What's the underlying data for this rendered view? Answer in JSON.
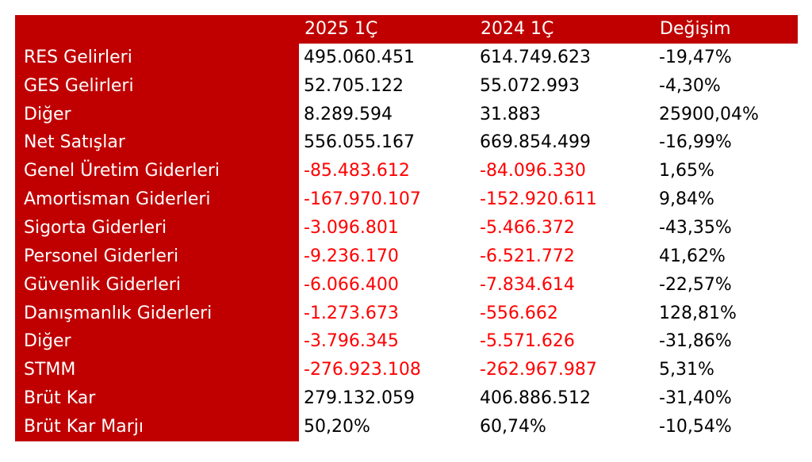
{
  "colors": {
    "header_bg": "#c00000",
    "header_text": "#ffffff",
    "negative_text": "#ff0000",
    "value_text": "#000000"
  },
  "header": {
    "col1": "2025 1Ç",
    "col2": "2024 1Ç",
    "col3": "Değişim"
  },
  "rows": [
    {
      "label": "RES Gelirleri",
      "v2025": "495.060.451",
      "v2024": "614.749.623",
      "change": "-19,47%",
      "red": false
    },
    {
      "label": "GES Gelirleri",
      "v2025": "52.705.122",
      "v2024": "55.072.993",
      "change": "-4,30%",
      "red": false
    },
    {
      "label": "Diğer",
      "v2025": "8.289.594",
      "v2024": "31.883",
      "change": "25900,04%",
      "red": false
    },
    {
      "label": "Net Satışlar",
      "v2025": "556.055.167",
      "v2024": "669.854.499",
      "change": "-16,99%",
      "red": false
    },
    {
      "label": "Genel Üretim Giderleri",
      "v2025": "-85.483.612",
      "v2024": "-84.096.330",
      "change": "1,65%",
      "red": true
    },
    {
      "label": "Amortisman Giderleri",
      "v2025": "-167.970.107",
      "v2024": "-152.920.611",
      "change": "9,84%",
      "red": true
    },
    {
      "label": "Sigorta Giderleri",
      "v2025": "-3.096.801",
      "v2024": "-5.466.372",
      "change": "-43,35%",
      "red": true
    },
    {
      "label": "Personel Giderleri",
      "v2025": "-9.236.170",
      "v2024": "-6.521.772",
      "change": "41,62%",
      "red": true
    },
    {
      "label": "Güvenlik Giderleri",
      "v2025": "-6.066.400",
      "v2024": "-7.834.614",
      "change": "-22,57%",
      "red": true
    },
    {
      "label": "Danışmanlık Giderleri",
      "v2025": "-1.273.673",
      "v2024": "-556.662",
      "change": "128,81%",
      "red": true
    },
    {
      "label": "Diğer",
      "v2025": "-3.796.345",
      "v2024": "-5.571.626",
      "change": "-31,86%",
      "red": true
    },
    {
      "label": "STMM",
      "v2025": "-276.923.108",
      "v2024": "-262.967.987",
      "change": "5,31%",
      "red": true
    },
    {
      "label": "Brüt Kar",
      "v2025": "279.132.059",
      "v2024": "406.886.512",
      "change": "-31,40%",
      "red": false
    },
    {
      "label": "Brüt Kar Marjı",
      "v2025": "50,20%",
      "v2024": "60,74%",
      "change": "-10,54%",
      "red": false
    }
  ]
}
